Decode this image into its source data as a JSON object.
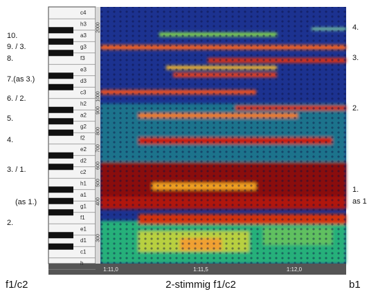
{
  "left_labels": [
    "10.",
    "9. / 3.",
    "8.",
    "7.(as 3.)",
    "6. / 2.",
    "5.",
    "4.",
    "3. / 1.",
    "(as 1.)",
    "2."
  ],
  "keyboard": {
    "keys": [
      "c4",
      "h3",
      "a3",
      "g3",
      "f3",
      "e3",
      "d3",
      "c3",
      "h2",
      "a2",
      "g2",
      "f2",
      "e2",
      "d2",
      "c2",
      "h1",
      "a1",
      "g1",
      "f1",
      "e1",
      "d1",
      "c1",
      "h"
    ]
  },
  "freq_axis": [
    "2000",
    "1000",
    "900",
    "800",
    "700",
    "600",
    "500",
    "400",
    "300"
  ],
  "time_axis": [
    "1:11,0",
    "1:11,5",
    "1:12,0"
  ],
  "right_labels": [
    "4.",
    "3.",
    "2.",
    "1.",
    "as 1"
  ],
  "footer": {
    "left": "f1/c2",
    "center": "2-stimmig f1/c2",
    "right": "b1"
  }
}
